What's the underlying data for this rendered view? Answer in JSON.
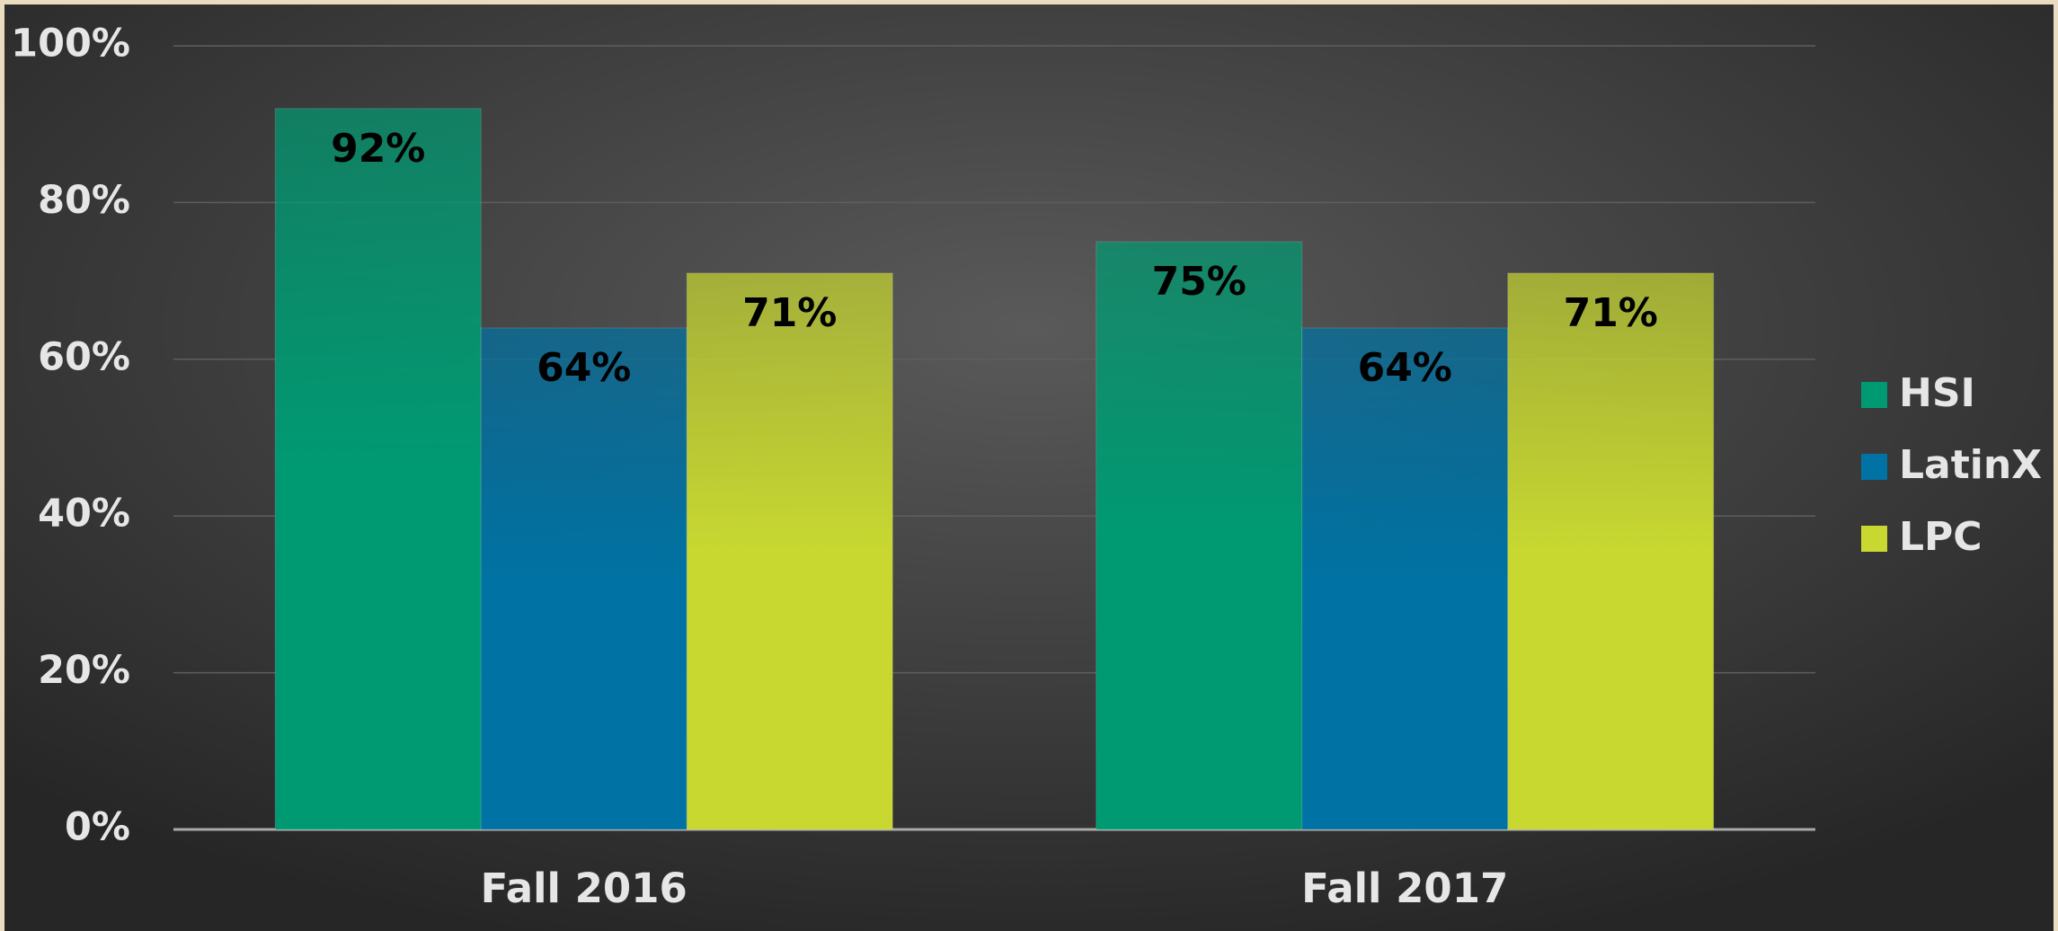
{
  "chart_data": {
    "type": "bar",
    "categories": [
      "Fall 2016",
      "Fall 2017"
    ],
    "series": [
      {
        "name": "HSI",
        "color": "#009a72",
        "values": [
          92,
          75
        ],
        "value_labels": [
          "92%",
          "75%"
        ]
      },
      {
        "name": "LatinX",
        "color": "#0072a3",
        "values": [
          64,
          64
        ],
        "value_labels": [
          "64%",
          "64%"
        ]
      },
      {
        "name": "LPC",
        "color": "#c8d831",
        "values": [
          71,
          71
        ],
        "value_labels": [
          "71%",
          "71%"
        ]
      }
    ],
    "ylim": [
      0,
      100
    ],
    "yticks": [
      {
        "value": 0,
        "label": "0%"
      },
      {
        "value": 20,
        "label": "20%"
      },
      {
        "value": 40,
        "label": "40%"
      },
      {
        "value": 60,
        "label": "60%"
      },
      {
        "value": 80,
        "label": "80%"
      },
      {
        "value": 100,
        "label": "100%"
      }
    ],
    "grid": true,
    "legend": "right"
  }
}
